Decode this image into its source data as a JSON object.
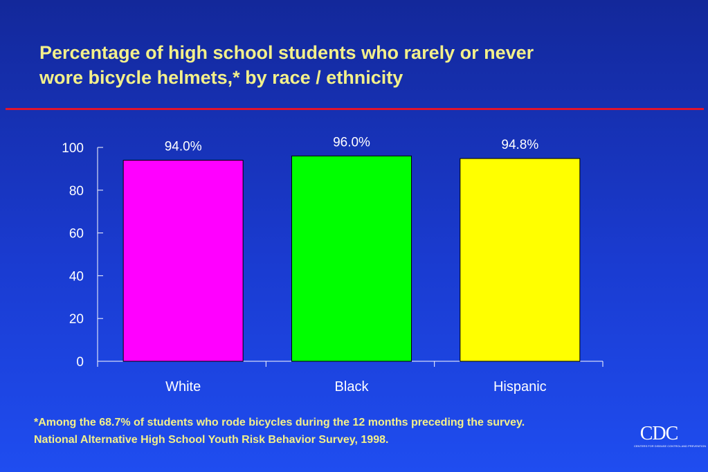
{
  "slide": {
    "title_line1": "Percentage of high school students who rarely or never",
    "title_line2": "wore bicycle helmets,* by race / ethnicity",
    "footnote_line1": "*Among the 68.7% of students who rode bicycles during the 12 months preceding the survey.",
    "footnote_line2": "National Alternative High School Youth Risk Behavior Survey, 1998.",
    "logo_text": "CDC",
    "logo_subtext": "CENTERS FOR DISEASE CONTROL AND PREVENTION"
  },
  "colors": {
    "title_text": "#f3f08a",
    "rule": "#e0142e",
    "axis": "#ffffff"
  },
  "chart_data": {
    "type": "bar",
    "categories": [
      "White",
      "Black",
      "Hispanic"
    ],
    "values": [
      94.0,
      96.0,
      94.8
    ],
    "data_labels": [
      "94.0%",
      "96.0%",
      "94.8%"
    ],
    "bar_colors": [
      "#ff00ff",
      "#00ff00",
      "#ffff00"
    ],
    "yticks": [
      0,
      20,
      40,
      60,
      80,
      100
    ],
    "ylim": [
      0,
      100
    ],
    "grid": false,
    "legend": "none",
    "xlabel": "",
    "ylabel": ""
  }
}
